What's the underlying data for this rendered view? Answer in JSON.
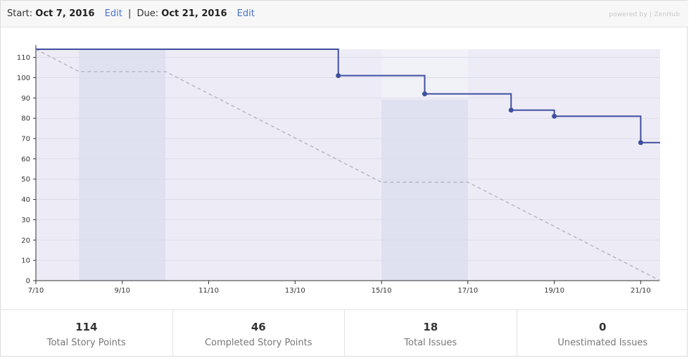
{
  "header": {
    "start_label": "Start:",
    "start_date": "Oct 7, 2016",
    "edit_label": "Edit",
    "separator": "|",
    "due_label": "Due:",
    "due_date": "Oct 21, 2016",
    "powered_by": "powered by | ZenHub"
  },
  "chart_data": {
    "type": "line",
    "title": "",
    "xlabel": "",
    "ylabel": "",
    "ylim": [
      0,
      114
    ],
    "xlim": [
      "7/10",
      "21/10 (end)"
    ],
    "yticks": [
      0,
      10,
      20,
      30,
      40,
      50,
      60,
      70,
      80,
      90,
      100,
      110
    ],
    "xticks": [
      "7/10",
      "9/10",
      "11/10",
      "13/10",
      "15/10",
      "17/10",
      "19/10",
      "21/10"
    ],
    "grid": true,
    "colors": {
      "remaining": "#3f4fa0",
      "ideal": "#b9bac8",
      "plot_bg": "#edecf6",
      "weekend_band": "#dfe0f0",
      "weekend_band_light": "#f1f1f8"
    },
    "weekend_bands": [
      {
        "from": 8,
        "to": 10,
        "style": "dark"
      },
      {
        "from": 15,
        "to": 17,
        "style": "light-top"
      }
    ],
    "series": [
      {
        "style": "step",
        "x": [
          7,
          14,
          14,
          16,
          16,
          18,
          18,
          19,
          19,
          21,
          21,
          21.45
        ],
        "values": [
          114,
          114,
          101,
          101,
          92,
          92,
          84,
          84,
          81,
          81,
          68,
          68
        ],
        "markers_x": [
          14,
          16,
          18,
          19,
          21
        ],
        "markers_y": [
          101,
          92,
          84,
          81,
          68
        ]
      },
      {
        "style": "dashed",
        "x": [
          7,
          8,
          10,
          15,
          17,
          21.45
        ],
        "values": [
          114,
          103,
          103,
          48.5,
          48.5,
          0
        ]
      }
    ]
  },
  "stats": [
    {
      "value": "114",
      "label": "Total Story Points"
    },
    {
      "value": "46",
      "label": "Completed Story Points"
    },
    {
      "value": "18",
      "label": "Total Issues"
    },
    {
      "value": "0",
      "label": "Unestimated Issues"
    }
  ]
}
